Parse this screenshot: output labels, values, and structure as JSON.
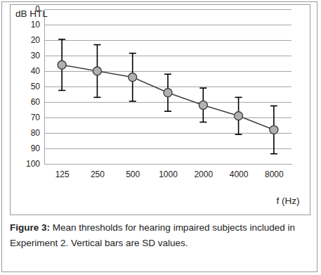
{
  "chart_data": {
    "type": "line",
    "y_label": "dB HTL",
    "x_label": "f (Hz)",
    "caption_label": "Figure 3:",
    "caption": "Mean thresholds for hearing impaired subjects included in Experiment 2. Vertical bars are SD values.",
    "categories": [
      "125",
      "250",
      "500",
      "1000",
      "2000",
      "4000",
      "8000"
    ],
    "values": [
      36,
      40,
      44,
      54,
      62,
      69,
      78
    ],
    "errors": [
      16.5,
      17,
      15.5,
      12,
      11,
      12,
      15.5
    ],
    "ylim": [
      100,
      0
    ],
    "yticks": [
      0,
      10,
      20,
      30,
      40,
      50,
      60,
      70,
      80,
      90,
      100
    ],
    "grid": true,
    "marker": "circle",
    "color": "#b0b0b0"
  }
}
